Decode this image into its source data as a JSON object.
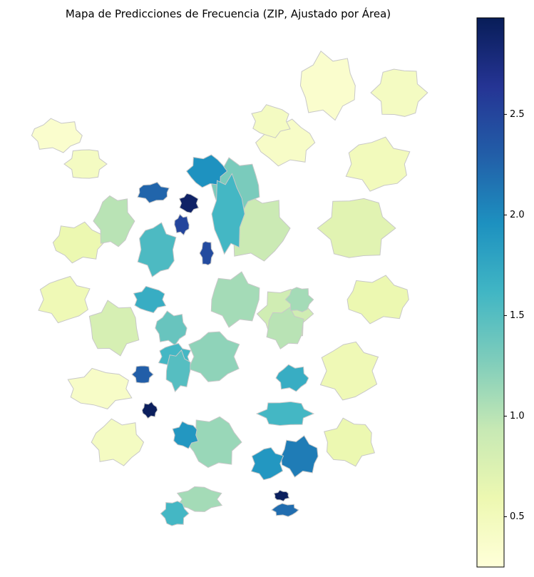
{
  "chart_data": {
    "type": "choropleth",
    "title": "Mapa de Predicciones de Frecuencia (ZIP, Ajustado por Área)",
    "values": [
      0.35,
      0.45,
      0.4,
      0.5,
      0.45,
      0.35,
      0.45,
      0.6,
      0.55,
      0.4,
      0.45,
      0.7,
      0.6,
      0.55,
      0.6,
      0.9,
      0.85,
      1.1,
      1.2,
      0.8,
      1.0,
      1.15,
      1.0,
      1.1,
      1.3,
      1.1,
      1.95,
      2.25,
      2.9,
      2.5,
      2.45,
      1.6,
      1.55,
      1.7,
      1.4,
      2.3,
      2.95,
      1.6,
      1.9,
      1.7,
      1.6,
      2.1,
      1.9,
      2.95,
      2.2,
      1.6,
      1.5
    ],
    "colors": [
      "#ffffd9",
      "#edf8b1",
      "#c7e9b4",
      "#7fcdbb",
      "#41b6c4",
      "#1d91c0",
      "#225ea8",
      "#253494",
      "#081d58"
    ],
    "clim": [
      0.25,
      2.98
    ],
    "cticks": [
      0.5,
      {
        "value": 1.0,
        "label": "1.0"
      },
      1.5,
      {
        "value": 2.0,
        "label": "2.0"
      },
      2.5
    ]
  }
}
